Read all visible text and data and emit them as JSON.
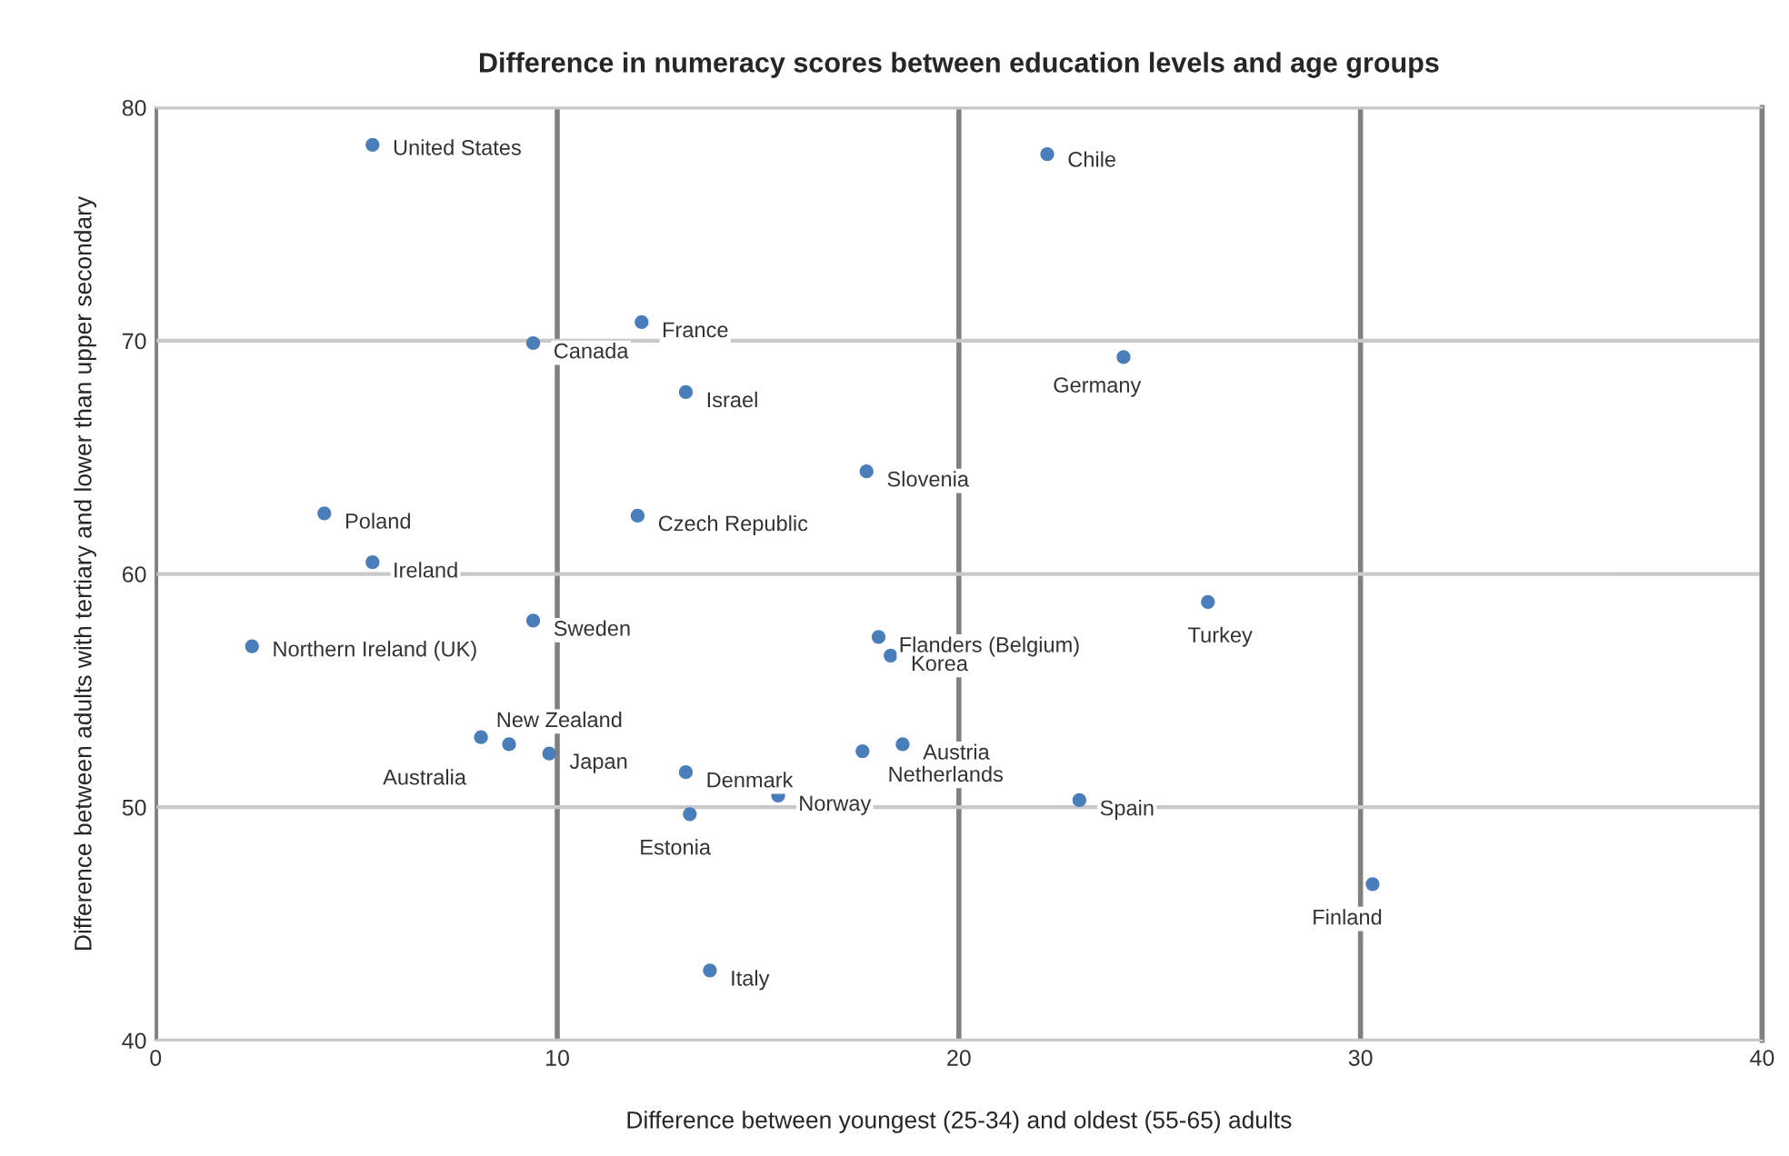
{
  "chart_data": {
    "type": "scatter",
    "title": "Difference in numeracy scores between education levels and age groups",
    "xlabel": "Difference between youngest (25-34) and oldest (55-65) adults",
    "ylabel": "Difference between adults with tertiary and lower than upper secondary",
    "xlim": [
      0,
      40
    ],
    "xticks": [
      0,
      10,
      20,
      30,
      40
    ],
    "ylim": [
      40,
      80
    ],
    "yticks": [
      40,
      50,
      60,
      70,
      80
    ],
    "grid": true,
    "marker": "circle",
    "series": [
      {
        "color": "#4a7ebb",
        "x": [
          5.4,
          22.2,
          12.1,
          9.4,
          24.1,
          13.2,
          17.7,
          4.2,
          12.0,
          5.4,
          26.2,
          9.4,
          2.4,
          18.0,
          18.3,
          8.1,
          8.8,
          9.8,
          18.6,
          17.6,
          13.2,
          15.5,
          23.0,
          13.3,
          30.3,
          13.8
        ],
        "values": [
          78.4,
          78.0,
          70.8,
          69.9,
          69.3,
          67.8,
          64.4,
          62.6,
          62.5,
          60.5,
          58.8,
          58.0,
          56.9,
          57.3,
          56.5,
          53.0,
          52.7,
          52.3,
          52.7,
          52.4,
          51.5,
          50.5,
          50.3,
          49.7,
          46.7,
          43.0
        ]
      }
    ],
    "annotations": [
      {
        "text": "United States",
        "x": 5.4,
        "y": 78.4
      },
      {
        "text": "Chile",
        "x": 22.2,
        "y": 78.0
      },
      {
        "text": "France",
        "x": 12.1,
        "y": 70.8
      },
      {
        "text": "Canada",
        "x": 9.4,
        "y": 69.9
      },
      {
        "text": "Germany",
        "x": 24.1,
        "y": 69.3
      },
      {
        "text": "Israel",
        "x": 13.2,
        "y": 67.8
      },
      {
        "text": "Slovenia",
        "x": 17.7,
        "y": 64.4
      },
      {
        "text": "Poland",
        "x": 4.2,
        "y": 62.6
      },
      {
        "text": "Czech Republic",
        "x": 12.0,
        "y": 62.5
      },
      {
        "text": "Ireland",
        "x": 5.4,
        "y": 60.5
      },
      {
        "text": "Turkey",
        "x": 26.2,
        "y": 58.8
      },
      {
        "text": "Sweden",
        "x": 9.4,
        "y": 58.0
      },
      {
        "text": "Northern Ireland (UK)",
        "x": 2.4,
        "y": 56.9
      },
      {
        "text": "Flanders (Belgium)",
        "x": 18.0,
        "y": 57.3
      },
      {
        "text": "Korea",
        "x": 18.3,
        "y": 56.5
      },
      {
        "text": "New Zealand",
        "x": 8.1,
        "y": 53.0
      },
      {
        "text": "Australia",
        "x": 8.8,
        "y": 52.7
      },
      {
        "text": "Japan",
        "x": 9.8,
        "y": 52.3
      },
      {
        "text": "Austria",
        "x": 18.6,
        "y": 52.7
      },
      {
        "text": "Netherlands",
        "x": 17.6,
        "y": 52.4
      },
      {
        "text": "Denmark",
        "x": 13.2,
        "y": 51.5
      },
      {
        "text": "Norway",
        "x": 15.5,
        "y": 50.5
      },
      {
        "text": "Spain",
        "x": 23.0,
        "y": 50.3
      },
      {
        "text": "Estonia",
        "x": 13.3,
        "y": 49.7
      },
      {
        "text": "Finland",
        "x": 30.3,
        "y": 46.7
      },
      {
        "text": "Italy",
        "x": 13.8,
        "y": 43.0
      }
    ]
  }
}
